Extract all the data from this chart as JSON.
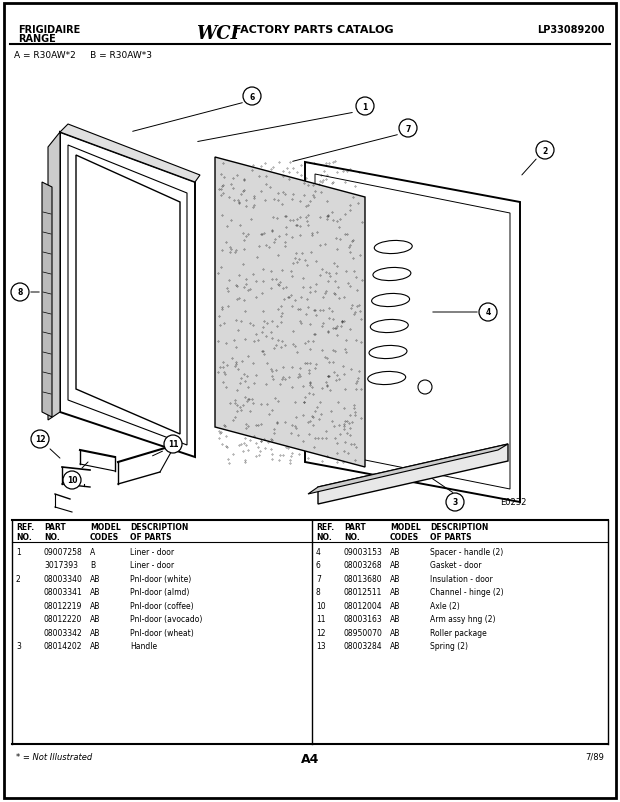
{
  "title_left1": "FRIGIDAIRE",
  "title_left2": "RANGE",
  "title_center1": "WCI",
  "title_center2": " FACTORY PARTS CATALOG",
  "title_right": "LP33089200",
  "subtitle": "A = R30AW*2     B = R30AW*3",
  "diagram_id": "E0232",
  "page_label": "A4",
  "date_label": "7/89",
  "note": "* = Not Illustrated",
  "bg_color": "#ffffff",
  "table_data_left": [
    [
      "1",
      "09007258",
      "A",
      "Liner - door"
    ],
    [
      "",
      "3017393",
      "B",
      "Liner - door"
    ],
    [
      "2",
      "08003340",
      "AB",
      "Pnl-door (white)"
    ],
    [
      "",
      "08003341",
      "AB",
      "Pnl-door (almd)"
    ],
    [
      "",
      "08012219",
      "AB",
      "Pnl-door (coffee)"
    ],
    [
      "",
      "08012220",
      "AB",
      "Pnl-door (avocado)"
    ],
    [
      "",
      "08003342",
      "AB",
      "Pnl-door (wheat)"
    ],
    [
      "3",
      "08014202",
      "AB",
      "Handle"
    ]
  ],
  "table_data_right": [
    [
      "4",
      "09003153",
      "AB",
      "Spacer - handle (2)"
    ],
    [
      "6",
      "08003268",
      "AB",
      "Gasket - door"
    ],
    [
      "7",
      "08013680",
      "AB",
      "Insulation - door"
    ],
    [
      "8",
      "08012511",
      "AB",
      "Channel - hinge (2)"
    ],
    [
      "10",
      "08012004",
      "AB",
      "Axle (2)"
    ],
    [
      "11",
      "08003163",
      "AB",
      "Arm assy hng (2)"
    ],
    [
      "12",
      "08950070",
      "AB",
      "Roller package"
    ],
    [
      "13",
      "08003284",
      "AB",
      "Spring (2)"
    ]
  ]
}
